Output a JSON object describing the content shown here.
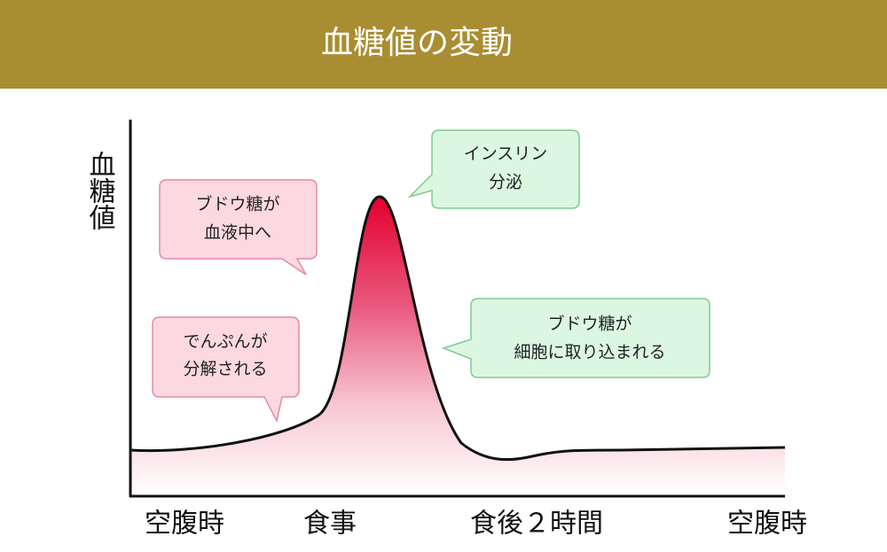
{
  "header": {
    "title": "血糖値の変動"
  },
  "y_axis_label": "血糖値",
  "x_labels": [
    "空腹時",
    "食事",
    "食後２時間",
    "空腹時"
  ],
  "callouts": [
    {
      "lines": [
        "ブドウ糖が",
        "血液中へ"
      ]
    },
    {
      "lines": [
        "でんぷんが",
        "分解される"
      ]
    },
    {
      "lines": [
        "インスリン",
        "分泌"
      ]
    },
    {
      "lines": [
        "ブドウ糖が",
        "細胞に取り込まれる"
      ]
    }
  ]
}
